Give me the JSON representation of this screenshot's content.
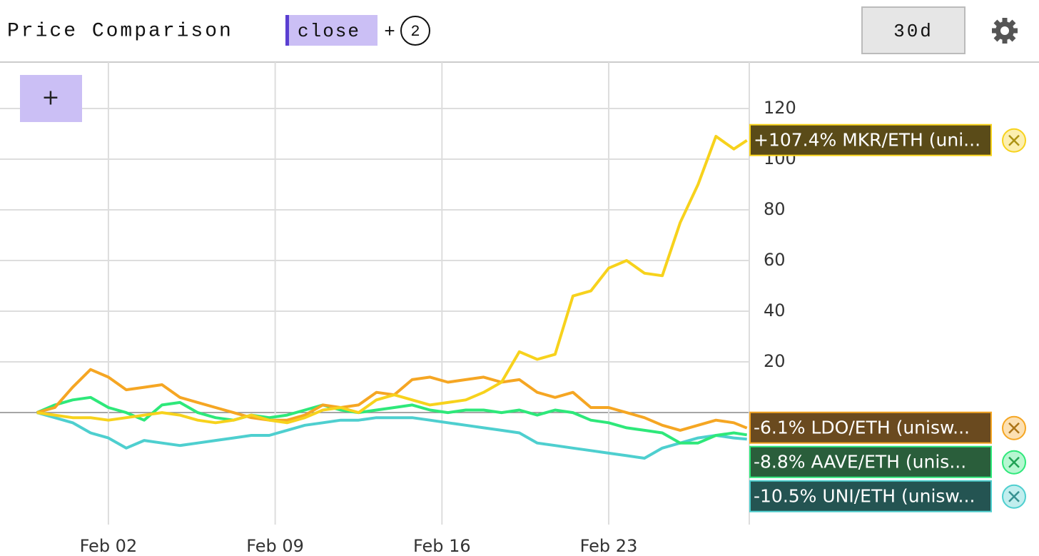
{
  "header": {
    "title": "Price Comparison",
    "field": "close",
    "plus": "+",
    "count": "2",
    "range": "30d",
    "add": "+"
  },
  "chart_data": {
    "type": "line",
    "x": [
      -1,
      -0.25,
      0.5,
      1.25,
      2,
      2.75,
      3.5,
      4.25,
      5,
      5.75,
      6.5,
      7.25,
      8,
      8.75,
      9.5,
      10.25,
      11,
      11.75,
      12.5,
      13.25,
      14,
      14.75,
      15.5,
      16.25,
      17,
      17.75,
      18.5,
      19.25,
      20,
      20.75,
      21.5,
      22.25,
      23,
      23.75,
      24.5,
      25.25,
      26,
      26.75,
      27.5,
      28.25,
      28.8
    ],
    "xlim": [
      -2.55,
      28.9
    ],
    "xticks": [
      {
        "value": 2,
        "label": "Feb 02"
      },
      {
        "value": 9,
        "label": "Feb 09"
      },
      {
        "value": 16,
        "label": "Feb 16"
      },
      {
        "value": 23,
        "label": "Feb 23"
      }
    ],
    "ylim": [
      -44.2,
      138.3
    ],
    "yticks": [
      20,
      40,
      60,
      80,
      100,
      120
    ],
    "grid": true,
    "series": [
      {
        "label": "+107.4% MKR/ETH (uni...",
        "color": "#f7d21c",
        "label_color": "#5a4b18",
        "values": [
          0,
          -1,
          -2,
          -2,
          -3,
          -2,
          -1,
          0,
          -1,
          -3,
          -4,
          -3,
          -1,
          -3,
          -4,
          -2,
          1,
          2,
          0,
          5,
          7,
          5,
          3,
          4,
          5,
          8,
          12,
          24,
          21,
          23,
          46,
          48,
          57,
          60,
          55,
          54,
          75,
          90,
          109,
          104,
          107.4
        ]
      },
      {
        "label": "-6.1% LDO/ETH (unisw...",
        "color": "#f5a623",
        "label_color": "#6a4a1f",
        "values": [
          0,
          2,
          10,
          17,
          14,
          9,
          10,
          11,
          6,
          4,
          2,
          0,
          -2,
          -3,
          -3,
          -1,
          3,
          2,
          3,
          8,
          7,
          13,
          14,
          12,
          13,
          14,
          12,
          13,
          8,
          6,
          8,
          2,
          2,
          0,
          -2,
          -5,
          -7,
          -5,
          -3,
          -4,
          -6.1
        ]
      },
      {
        "label": "-8.8% AAVE/ETH (unis...",
        "color": "#2ee87a",
        "label_color": "#2a5e3b",
        "values": [
          0,
          3,
          5,
          6,
          2,
          0,
          -3,
          3,
          4,
          0,
          -2,
          -3,
          -1,
          -2,
          -1,
          1,
          3,
          1,
          0,
          1,
          2,
          3,
          1,
          0,
          1,
          1,
          0,
          1,
          -1,
          1,
          0,
          -3,
          -4,
          -6,
          -7,
          -8,
          -12,
          -12,
          -9,
          -8,
          -8.8
        ]
      },
      {
        "label": "-10.5% UNI/ETH (unisw...",
        "color": "#4ecfcf",
        "label_color": "#245452",
        "values": [
          0,
          -2,
          -4,
          -8,
          -10,
          -14,
          -11,
          -12,
          -13,
          -12,
          -11,
          -10,
          -9,
          -9,
          -7,
          -5,
          -4,
          -3,
          -3,
          -2,
          -2,
          -2,
          -3,
          -4,
          -5,
          -6,
          -7,
          -8,
          -12,
          -13,
          -14,
          -15,
          -16,
          -17,
          -18,
          -14,
          -12,
          -10,
          -9,
          -10,
          -10.5
        ]
      }
    ]
  }
}
